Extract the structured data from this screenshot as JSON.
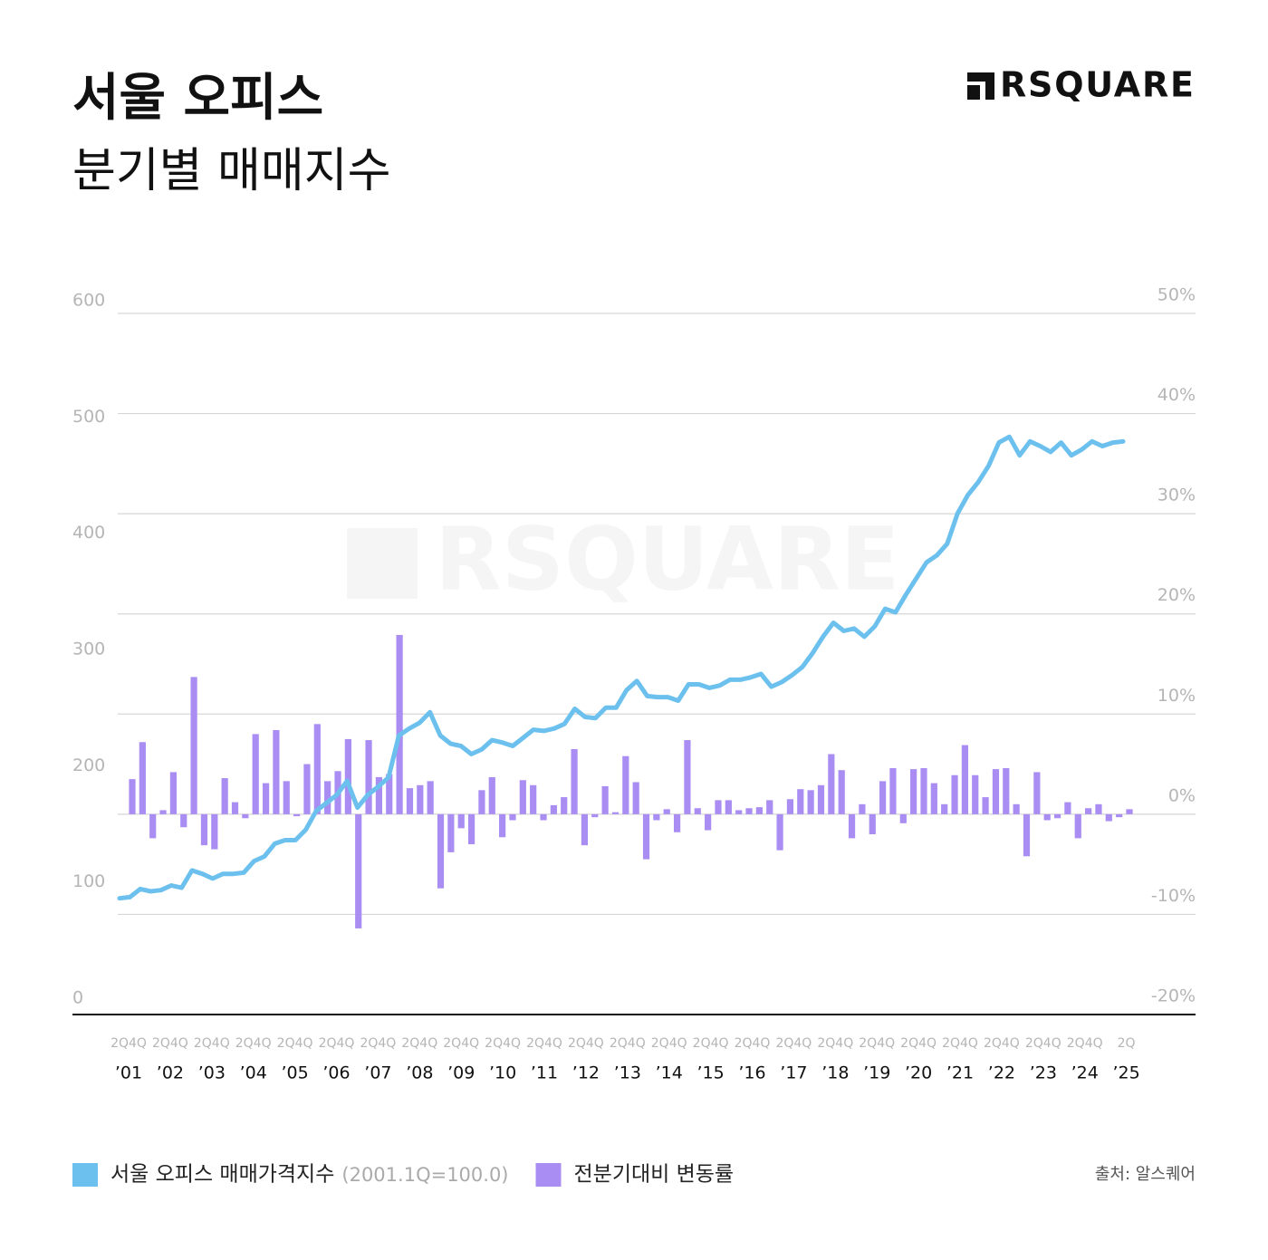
{
  "logo": "RSQUARE",
  "chart_data": {
    "type": "bar_line",
    "title": "서울 오피스",
    "subtitle": "분기별 매매지수",
    "source": "출처: 알스퀘어",
    "quarter_tick_labels": [
      "2Q4Q",
      "2Q4Q",
      "2Q4Q",
      "2Q4Q",
      "2Q4Q",
      "2Q4Q",
      "2Q4Q",
      "2Q4Q",
      "2Q4Q",
      "2Q4Q",
      "2Q4Q",
      "2Q4Q",
      "2Q4Q",
      "2Q4Q",
      "2Q4Q",
      "2Q4Q",
      "2Q4Q",
      "2Q4Q",
      "2Q4Q",
      "2Q4Q",
      "2Q4Q",
      "2Q4Q",
      "2Q4Q",
      "2Q4Q",
      "2Q"
    ],
    "year_tick_labels": [
      "’01",
      "’02",
      "’03",
      "’04",
      "’05",
      "’06",
      "’07",
      "’08",
      "’09",
      "’10",
      "’11",
      "’12",
      "’13",
      "’14",
      "’15",
      "’16",
      "’17",
      "’18",
      "’19",
      "’20",
      "’21",
      "’22",
      "’23",
      "’24",
      "’25"
    ],
    "ylim": [
      0,
      600
    ],
    "yticks": [
      0,
      100,
      200,
      300,
      400,
      500,
      600
    ],
    "y2lim": [
      -20,
      50
    ],
    "y2ticks": [
      {
        "value": -20,
        "label": "-20%"
      },
      {
        "value": -10,
        "label": "-10%"
      },
      {
        "value": 0,
        "label": "0%"
      },
      {
        "value": 10,
        "label": "10%"
      },
      {
        "value": 20,
        "label": "20%"
      },
      {
        "value": 30,
        "label": "30%"
      },
      {
        "value": 40,
        "label": "40%"
      },
      {
        "value": 50,
        "label": "50%"
      }
    ],
    "grid": true,
    "series": [
      {
        "name": "서울 오피스 매매가격지수",
        "name_note": "(2001.1Q=100.0)",
        "type": "line",
        "axis": "y",
        "color": "#6cc0ee",
        "values": [
          100,
          101,
          108,
          106,
          107,
          111,
          109,
          124,
          121,
          117,
          121,
          121,
          122,
          132,
          136,
          147,
          150,
          150,
          159,
          175,
          182,
          189,
          201,
          178,
          189,
          196,
          204,
          240,
          246,
          251,
          260,
          240,
          233,
          231,
          224,
          228,
          236,
          234,
          231,
          238,
          245,
          244,
          246,
          250,
          263,
          256,
          255,
          264,
          264,
          279,
          287,
          274,
          273,
          273,
          270,
          284,
          284,
          281,
          283,
          288,
          288,
          290,
          293,
          282,
          286,
          292,
          299,
          311,
          325,
          337,
          330,
          332,
          325,
          334,
          349,
          346,
          361,
          375,
          389,
          395,
          405,
          431,
          447,
          458,
          472,
          492,
          497,
          481,
          493,
          489,
          484,
          492,
          481,
          486,
          493,
          489,
          492,
          493
        ]
      },
      {
        "name": "전분기대비 변동률",
        "type": "bar",
        "axis": "y2",
        "color": "#a98df2",
        "values": [
          3.5,
          7.2,
          -2.4,
          0.4,
          4.2,
          -1.3,
          13.7,
          -3.1,
          -3.5,
          3.6,
          1.2,
          -0.4,
          8.0,
          3.1,
          8.4,
          3.3,
          -0.2,
          5.0,
          9.0,
          3.3,
          4.3,
          7.5,
          -11.4,
          7.4,
          3.7,
          4.0,
          17.9,
          2.6,
          2.9,
          3.3,
          -7.4,
          -3.8,
          -1.4,
          -3.0,
          2.4,
          3.7,
          -2.3,
          -0.6,
          3.4,
          2.9,
          -0.6,
          0.9,
          1.7,
          6.5,
          -3.1,
          -0.3,
          2.8,
          0.2,
          5.8,
          3.2,
          -4.5,
          -0.6,
          0.5,
          -1.8,
          7.4,
          0.6,
          -1.6,
          1.4,
          1.4,
          0.4,
          0.6,
          0.7,
          1.4,
          -3.6,
          1.5,
          2.5,
          2.4,
          2.9,
          6.0,
          4.4,
          -2.4,
          1.0,
          -2.0,
          3.3,
          4.6,
          -0.9,
          4.5,
          4.6,
          3.1,
          1.0,
          3.9,
          6.9,
          3.9,
          1.7,
          4.5,
          4.6,
          1.0,
          -4.2,
          4.2,
          -0.6,
          -0.4,
          1.2,
          -2.4,
          0.6,
          1.0,
          -0.7,
          -0.3,
          0.5
        ]
      }
    ]
  }
}
